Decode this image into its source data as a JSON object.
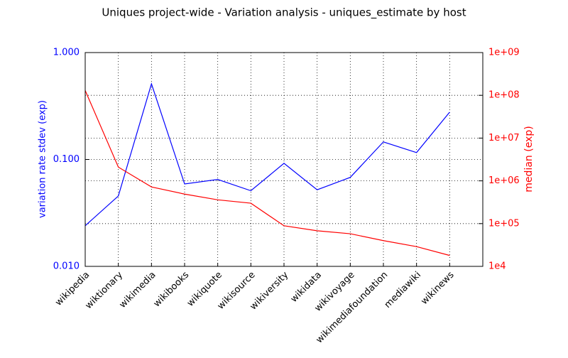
{
  "chart_data": {
    "type": "line",
    "title": "Uniques project-wide - Variation analysis - uniques_estimate by host",
    "categories": [
      "wikipedia",
      "wiktionary",
      "wikimedia",
      "wikibooks",
      "wikiquote",
      "wikisource",
      "wikiversity",
      "wikidata",
      "wikivoyage",
      "wikimediafoundation",
      "mediawiki",
      "wikinews"
    ],
    "ylabel": "variation rate stdev (exp)",
    "y2label": "median (exp)",
    "ylim": [
      0.01,
      1
    ],
    "yticks": [
      {
        "value": 1,
        "label": "1.000"
      },
      {
        "value": 0.1,
        "label": "0.100"
      },
      {
        "value": 0.01,
        "label": "0.010"
      }
    ],
    "y2lim": [
      10000,
      1000000000
    ],
    "y2ticks": [
      {
        "value": 1000000000,
        "label": "1e+09"
      },
      {
        "value": 100000000,
        "label": "1e+08"
      },
      {
        "value": 10000000,
        "label": "1e+07"
      },
      {
        "value": 1000000,
        "label": "1e+06"
      },
      {
        "value": 100000,
        "label": "1e+05"
      },
      {
        "value": 10000,
        "label": "1e4"
      }
    ],
    "log_scale": true,
    "grid": true,
    "series": [
      {
        "name": "variation rate stdev",
        "color": "#0000ff",
        "values": [
          0.024,
          0.0455,
          0.51,
          0.059,
          0.065,
          0.051,
          0.092,
          0.052,
          0.068,
          0.146,
          0.116,
          0.277
        ]
      },
      {
        "name": "median",
        "color": "#ff0000",
        "axis": "y2",
        "values": [
          130000000,
          2100000,
          720000,
          490000,
          360000,
          300000,
          89000,
          68000,
          58000,
          40000,
          29000,
          18000
        ]
      }
    ]
  }
}
